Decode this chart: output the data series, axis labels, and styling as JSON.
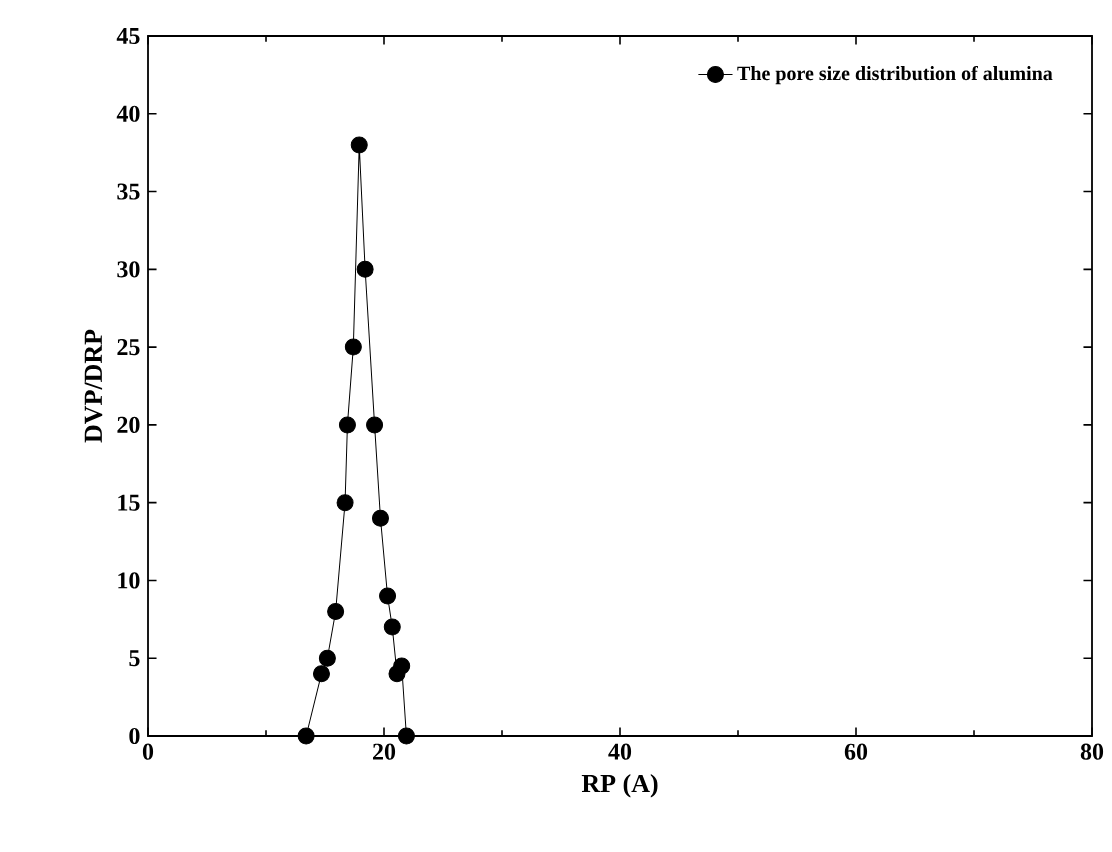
{
  "chart_data": {
    "type": "line",
    "xlabel": "RP (A)",
    "ylabel": "DVP/DRP",
    "xlim": [
      0,
      80
    ],
    "ylim": [
      0,
      45
    ],
    "xticks": [
      0,
      20,
      40,
      60,
      80
    ],
    "yticks": [
      0,
      5,
      10,
      15,
      20,
      25,
      30,
      35,
      40,
      45
    ],
    "marker": "circle",
    "legend": "top right",
    "grid": false,
    "series": [
      {
        "name": "The  pore size distribution  of  alumina",
        "color": "#000000",
        "x": [
          13.4,
          14.7,
          15.2,
          15.9,
          16.7,
          16.9,
          17.4,
          17.9,
          18.4,
          19.2,
          19.7,
          20.3,
          20.7,
          21.1,
          21.5,
          21.9
        ],
        "values": [
          0,
          4,
          5,
          8,
          15,
          20,
          25,
          38,
          30,
          20,
          14,
          9,
          7,
          4,
          4.5,
          0
        ]
      }
    ]
  }
}
